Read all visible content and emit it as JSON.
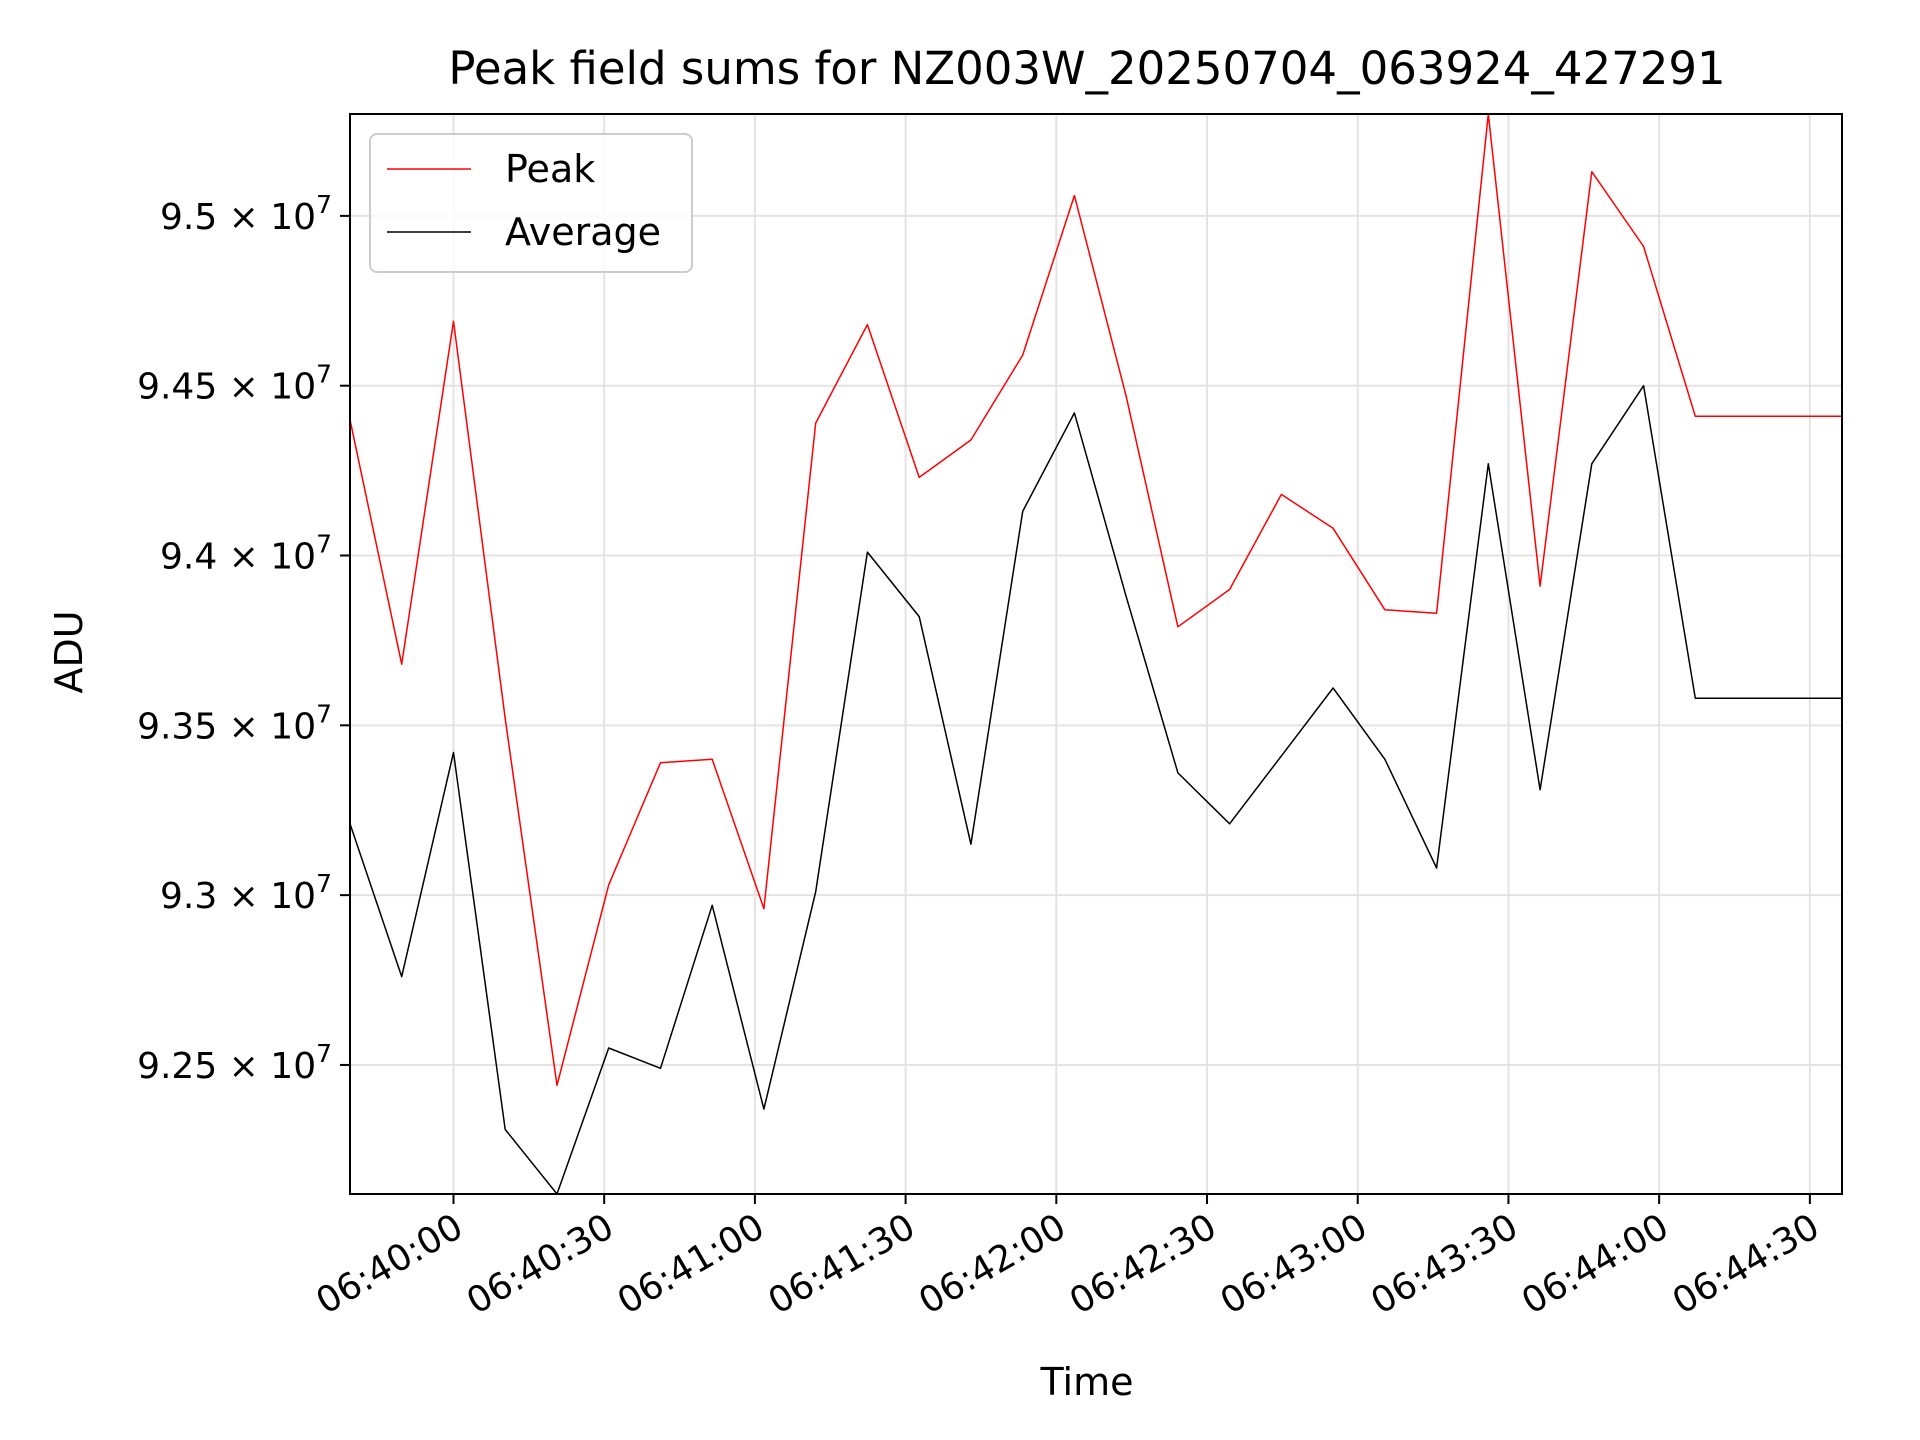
{
  "chart_data": {
    "type": "line",
    "title": "Peak field sums for NZ003W_20250704_063924_427291",
    "xlabel": "Time",
    "ylabel": "ADU",
    "grid": true,
    "legend_position": "upper-left",
    "x_ticks": [
      "06:40:00",
      "06:40:30",
      "06:41:00",
      "06:41:30",
      "06:42:00",
      "06:42:30",
      "06:43:00",
      "06:43:30",
      "06:44:00",
      "06:44:30"
    ],
    "x_tick_seconds": [
      0,
      30,
      60,
      90,
      120,
      150,
      180,
      210,
      240,
      270
    ],
    "xlim_seconds": [
      -20.6,
      276.4
    ],
    "y_ticks": [
      {
        "value": 92500000,
        "mantissa": "9.25"
      },
      {
        "value": 93000000,
        "mantissa": "9.3"
      },
      {
        "value": 93500000,
        "mantissa": "9.35"
      },
      {
        "value": 94000000,
        "mantissa": "9.4"
      },
      {
        "value": 94500000,
        "mantissa": "9.45"
      },
      {
        "value": 95000000,
        "mantissa": "9.5"
      }
    ],
    "y_tick_exponent": "7",
    "ylim": [
      92120000,
      95300000
    ],
    "x_seconds": [
      -20.6,
      -10.3,
      0,
      10.3,
      20.6,
      30.9,
      41.2,
      51.5,
      61.8,
      72.1,
      82.4,
      92.7,
      103,
      113.3,
      123.6,
      133.9,
      144.2,
      154.5,
      164.8,
      175.1,
      185.4,
      195.7,
      206,
      216.3,
      226.6,
      236.9,
      247.2,
      257.5,
      267.8,
      276.4
    ],
    "series": [
      {
        "name": "Peak",
        "color": "#ff0000",
        "values": [
          94400000,
          93680000,
          94690000,
          93520000,
          92440000,
          93030000,
          93390000,
          93400000,
          92960000,
          94390000,
          94680000,
          94230000,
          94340000,
          94590000,
          95060000,
          94470000,
          93790000,
          93900000,
          94180000,
          94080000,
          93840000,
          93830000,
          95300000,
          93910000,
          95130000,
          94910000,
          94410000,
          94410000,
          94410000,
          94410000
        ]
      },
      {
        "name": "Average",
        "color": "#000000",
        "values": [
          93210000,
          92760000,
          93420000,
          92310000,
          92120000,
          92550000,
          92490000,
          92970000,
          92370000,
          93010000,
          94010000,
          93820000,
          93150000,
          94130000,
          94420000,
          93880000,
          93360000,
          93210000,
          93410000,
          93610000,
          93400000,
          93080000,
          94270000,
          93310000,
          94270000,
          94500000,
          93580000,
          93580000,
          93580000,
          93580000
        ]
      }
    ]
  }
}
